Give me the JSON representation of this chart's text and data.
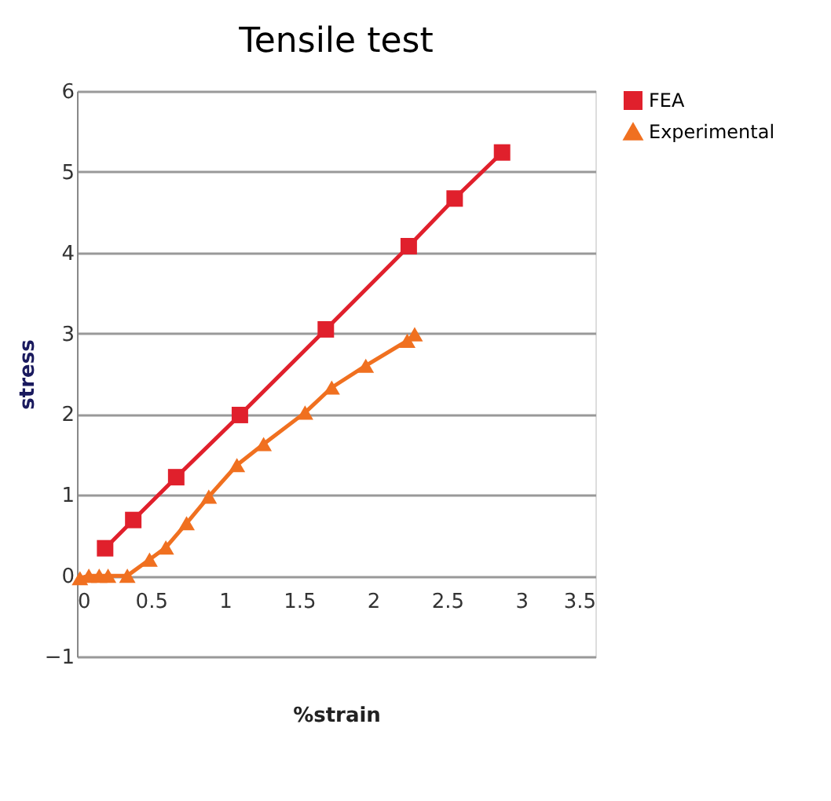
{
  "chart_data": {
    "type": "line",
    "title": "Tensile test",
    "xlabel": "%strain",
    "ylabel": "stress",
    "xlim": [
      0,
      3.5
    ],
    "xticks": [
      0,
      0.5,
      1,
      1.5,
      2,
      2.5,
      3,
      3.5
    ],
    "ylim": [
      -1,
      6
    ],
    "yticks": [
      -1,
      0,
      1,
      2,
      3,
      4,
      5,
      6
    ],
    "grid": "y",
    "legend": "right",
    "series": [
      {
        "name": "FEA",
        "color": "#e0202c",
        "marker": "square",
        "x": [
          0.19,
          0.38,
          0.67,
          1.1,
          1.68,
          2.24,
          2.55,
          2.87
        ],
        "values": [
          0.34,
          0.69,
          1.22,
          1.99,
          3.05,
          4.08,
          4.67,
          5.24
        ]
      },
      {
        "name": "Experimental",
        "color": "#f07020",
        "marker": "triangle",
        "x": [
          0.02,
          0.08,
          0.15,
          0.21,
          0.34,
          0.49,
          0.6,
          0.74,
          0.89,
          1.08,
          1.26,
          1.54,
          1.72,
          1.95,
          2.23,
          2.28
        ],
        "values": [
          -0.03,
          0,
          0,
          0,
          0,
          0.2,
          0.35,
          0.65,
          0.98,
          1.37,
          1.63,
          2.02,
          2.33,
          2.6,
          2.91,
          2.99
        ]
      }
    ]
  }
}
